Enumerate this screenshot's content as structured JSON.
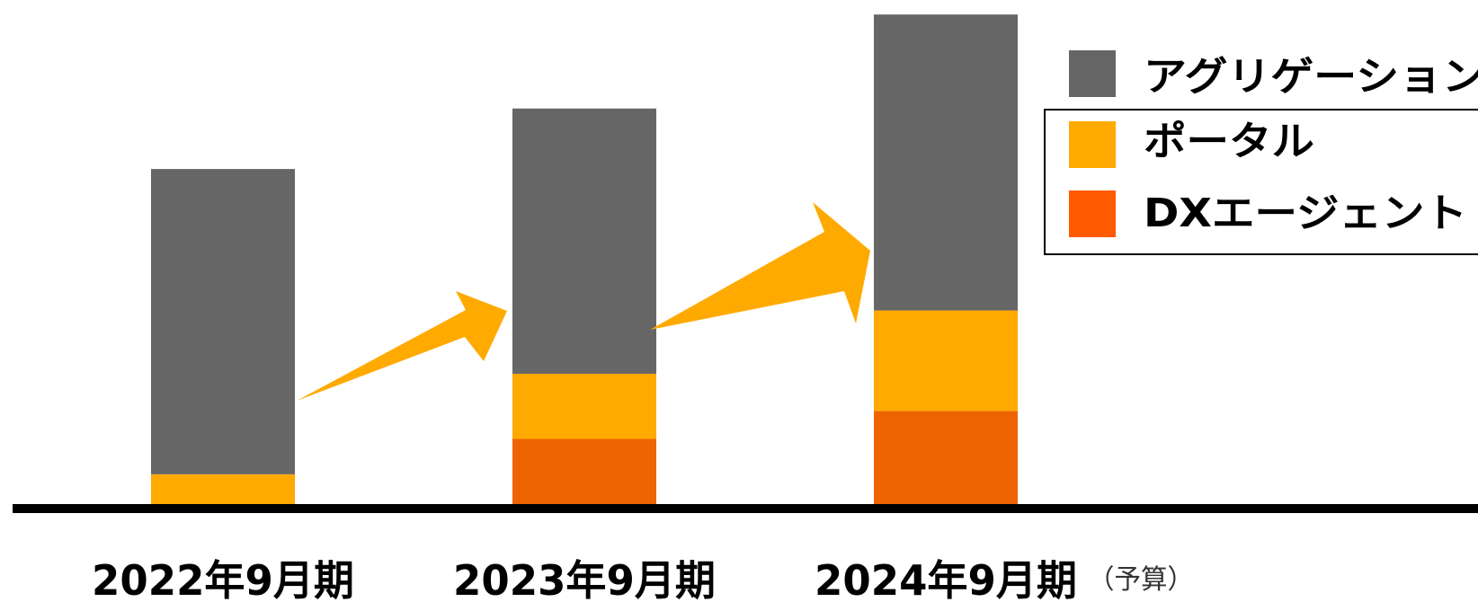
{
  "chart_data": {
    "type": "bar",
    "stacked": true,
    "categories": [
      "2022年9月期",
      "2023年9月期",
      "2024年9月期"
    ],
    "annotations": [
      {
        "category": "2024年9月期",
        "text": "（予算）"
      }
    ],
    "series": [
      {
        "name": "DXエージェント",
        "color": "#EE6302",
        "values": [
          0,
          7,
          10
        ]
      },
      {
        "name": "ポータル",
        "color": "#FFAA00",
        "values": [
          3.2,
          7,
          10.8
        ]
      },
      {
        "name": "アグリゲーション",
        "color": "#666666",
        "values": [
          32.8,
          28.5,
          31.8
        ]
      }
    ],
    "legend": {
      "placement": "top-right",
      "entries": [
        {
          "label": "アグリゲーション",
          "color": "#666666"
        },
        {
          "label": "ポータル",
          "color": "#FFAA00"
        },
        {
          "label": "DXエージェント",
          "color": "#FF5A00"
        }
      ]
    },
    "ylim": [
      0,
      53
    ],
    "grid": false,
    "growth_arrows": true,
    "arrow_color": "#FFAA00",
    "title": "",
    "xlabel": "",
    "ylabel": ""
  }
}
